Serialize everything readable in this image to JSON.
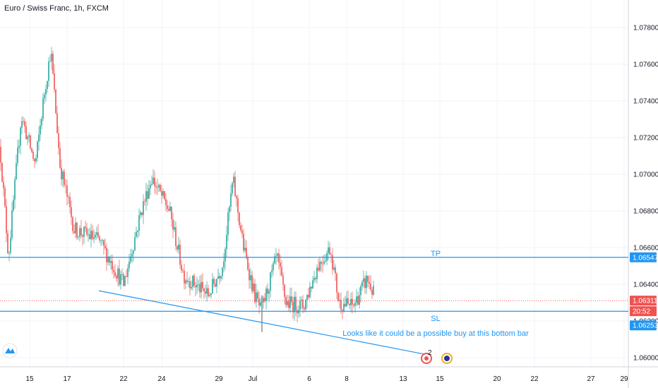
{
  "chart_title": "Euro / Swiss Franc, 1h, FXCM",
  "colors": {
    "up": "#26a69a",
    "down": "#ef5350",
    "level_line": "#2196f3",
    "grid": "#f0f3fa",
    "axis_text": "#131722",
    "price_badge_red": "#ef5350",
    "price_badge_blue": "#2196f3"
  },
  "chart_data": {
    "type": "candlestick",
    "ylim": [
      1.0595,
      1.0795
    ],
    "y_ticks": [
      "1.07800",
      "1.07600",
      "1.07400",
      "1.07200",
      "1.07000",
      "1.06800",
      "1.06600",
      "1.06400",
      "1.06200",
      "1.06000"
    ],
    "x_tick_labels": [
      "15",
      "17",
      "22",
      "24",
      "29",
      "Jul",
      "6",
      "8",
      "13",
      "15",
      "20",
      "22",
      "27",
      "29"
    ],
    "key_points": [
      {
        "x": 0,
        "y": 1.0715
      },
      {
        "x": 12,
        "y": 1.0655
      },
      {
        "x": 30,
        "y": 1.0732
      },
      {
        "x": 50,
        "y": 1.0705
      },
      {
        "x": 62,
        "y": 1.0742
      },
      {
        "x": 72,
        "y": 1.0768
      },
      {
        "x": 85,
        "y": 1.0705
      },
      {
        "x": 105,
        "y": 1.067
      },
      {
        "x": 140,
        "y": 1.0664
      },
      {
        "x": 175,
        "y": 1.064
      },
      {
        "x": 200,
        "y": 1.068
      },
      {
        "x": 215,
        "y": 1.0698
      },
      {
        "x": 240,
        "y": 1.068
      },
      {
        "x": 260,
        "y": 1.0645
      },
      {
        "x": 295,
        "y": 1.0634
      },
      {
        "x": 315,
        "y": 1.065
      },
      {
        "x": 330,
        "y": 1.0697
      },
      {
        "x": 345,
        "y": 1.066
      },
      {
        "x": 360,
        "y": 1.0635
      },
      {
        "x": 370,
        "y": 1.0625
      },
      {
        "x": 392,
        "y": 1.0655
      },
      {
        "x": 405,
        "y": 1.063
      },
      {
        "x": 430,
        "y": 1.0628
      },
      {
        "x": 450,
        "y": 1.065
      },
      {
        "x": 468,
        "y": 1.066
      },
      {
        "x": 480,
        "y": 1.063
      },
      {
        "x": 500,
        "y": 1.0628
      },
      {
        "x": 520,
        "y": 1.0643
      },
      {
        "x": 530,
        "y": 1.0634
      }
    ],
    "horizontal_lines": [
      {
        "label": "TP",
        "value": 1.06547
      },
      {
        "label": "SL",
        "value": 1.06253
      },
      {
        "label": "",
        "value": 1.06311,
        "style": "dotted"
      }
    ],
    "trendline": {
      "from": {
        "x": 140,
        "y": 1.06365
      },
      "to": {
        "x": 600,
        "y": 1.0602
      }
    },
    "annotation": "Looks like it could be a possible buy at this bottom bar",
    "price_badges": [
      {
        "text": "1.06547",
        "color": "blue"
      },
      {
        "text": "1.06311",
        "color": "red"
      },
      {
        "text": "20:52",
        "color": "red"
      },
      {
        "text": "1.06253",
        "color": "blue"
      }
    ],
    "event_marker_count": "2"
  }
}
